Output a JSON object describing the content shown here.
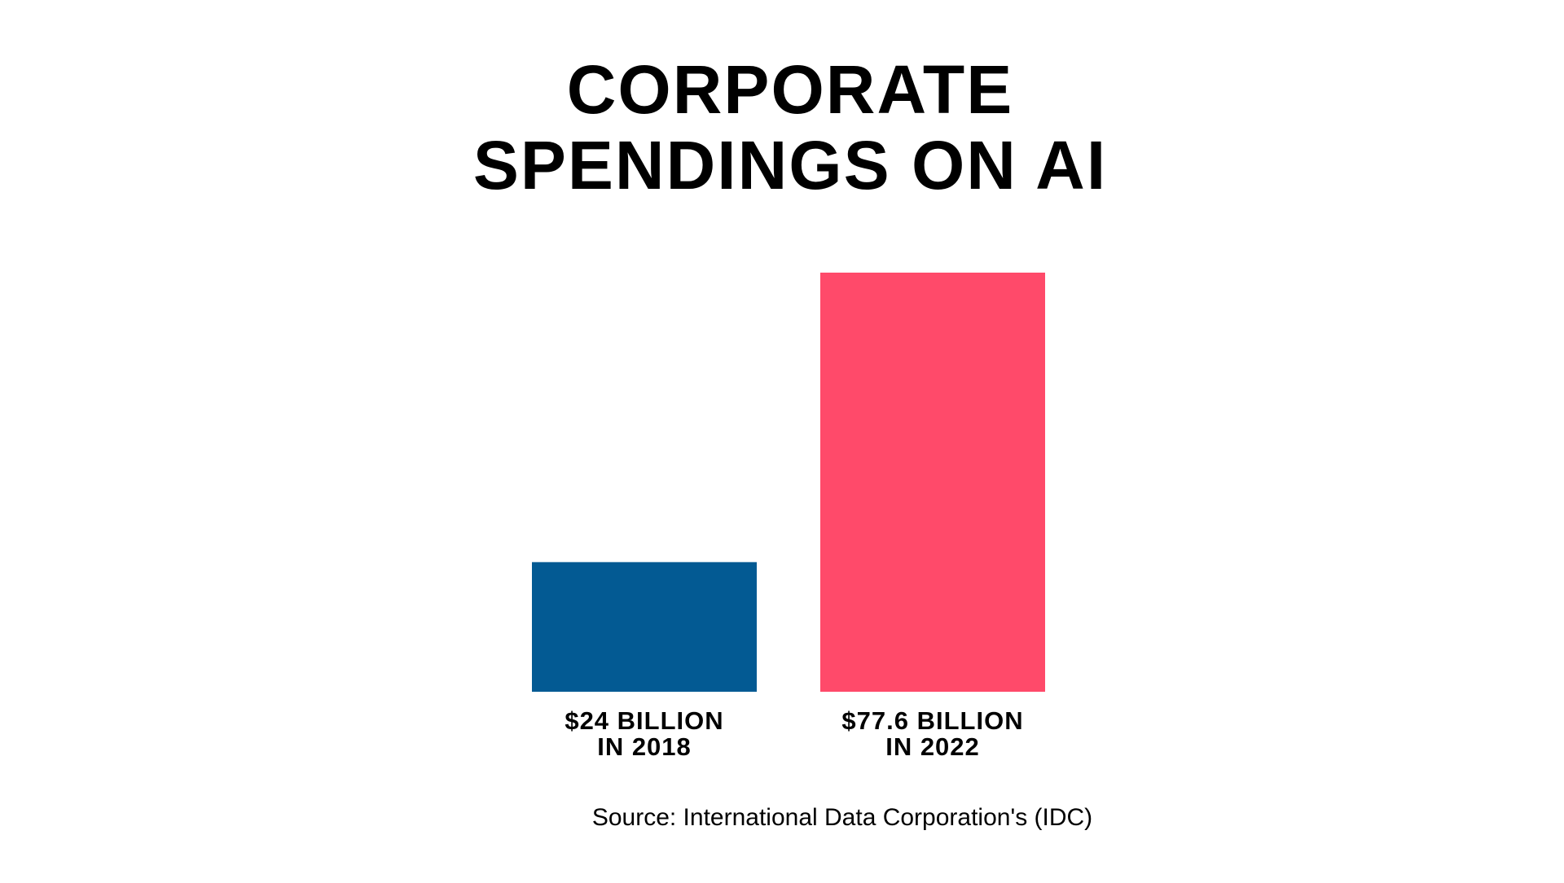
{
  "chart_data": {
    "type": "bar",
    "title": [
      "CORPORATE",
      "SPENDINGS ON AI"
    ],
    "categories": [
      "IN 2018",
      "IN 2022"
    ],
    "values": [
      24,
      77.6
    ],
    "value_labels": [
      "$24 BILLION",
      "$77.6 BILLION"
    ],
    "colors": [
      "#035a93",
      "#ff4a6a"
    ],
    "source": "Source: International Data Corporation's (IDC)"
  }
}
